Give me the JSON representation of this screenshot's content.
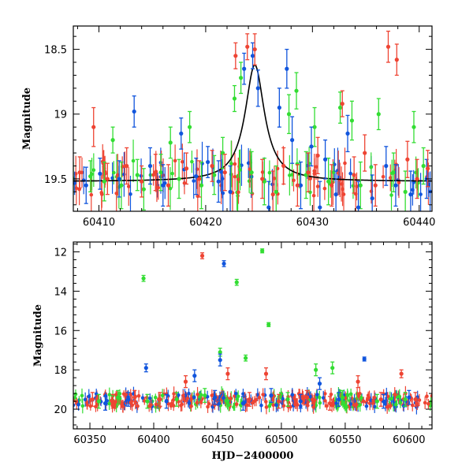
{
  "colors": {
    "green": "#33dd33",
    "blue": "#1155dd",
    "red": "#ee4433",
    "model": "#000000"
  },
  "chart_data": [
    {
      "type": "scatter",
      "panel": "top",
      "xlabel": "",
      "ylabel": "Magnitude",
      "xlim": [
        60407.6,
        60441.2
      ],
      "ylim": [
        19.75,
        18.32
      ],
      "y_inverted": true,
      "xticks": [
        60410,
        60420,
        60430,
        60440
      ],
      "yticks": [
        18.5,
        19,
        19.5
      ],
      "model_curve": {
        "label": "",
        "peak_x": 60424.6,
        "peak_mag": 18.62,
        "baseline_mag": 19.52,
        "width_days": 1.1
      },
      "series": [
        {
          "color": "green",
          "points": [
            {
              "x": 60409.2,
              "y": 19.48,
              "err": 0.12
            },
            {
              "x": 60410.5,
              "y": 19.52,
              "err": 0.15
            },
            {
              "x": 60411.3,
              "y": 19.2,
              "err": 0.1
            },
            {
              "x": 60412.1,
              "y": 19.55,
              "err": 0.18
            },
            {
              "x": 60413.6,
              "y": 19.47,
              "err": 0.12
            },
            {
              "x": 60414.2,
              "y": 19.58,
              "err": 0.16
            },
            {
              "x": 60415.8,
              "y": 19.45,
              "err": 0.14
            },
            {
              "x": 60416.7,
              "y": 19.22,
              "err": 0.12
            },
            {
              "x": 60417.5,
              "y": 19.5,
              "err": 0.15
            },
            {
              "x": 60418.5,
              "y": 19.1,
              "err": 0.12
            },
            {
              "x": 60419.6,
              "y": 19.55,
              "err": 0.18
            },
            {
              "x": 60420.8,
              "y": 19.47,
              "err": 0.15
            },
            {
              "x": 60421.6,
              "y": 19.3,
              "err": 0.12
            },
            {
              "x": 60422.7,
              "y": 18.88,
              "err": 0.1
            },
            {
              "x": 60423.3,
              "y": 18.72,
              "err": 0.12
            },
            {
              "x": 60424.3,
              "y": 19.45,
              "err": 0.16
            },
            {
              "x": 60425.5,
              "y": 19.52,
              "err": 0.18
            },
            {
              "x": 60426.6,
              "y": 19.6,
              "err": 0.2
            },
            {
              "x": 60427.8,
              "y": 19.0,
              "err": 0.15
            },
            {
              "x": 60428.5,
              "y": 18.82,
              "err": 0.14
            },
            {
              "x": 60429.4,
              "y": 19.47,
              "err": 0.18
            },
            {
              "x": 60430.2,
              "y": 19.1,
              "err": 0.15
            },
            {
              "x": 60431.5,
              "y": 19.52,
              "err": 0.18
            },
            {
              "x": 60432.6,
              "y": 18.95,
              "err": 0.12
            },
            {
              "x": 60433.7,
              "y": 19.05,
              "err": 0.15
            },
            {
              "x": 60434.5,
              "y": 19.55,
              "err": 0.18
            },
            {
              "x": 60436.2,
              "y": 19.0,
              "err": 0.12
            },
            {
              "x": 60437.6,
              "y": 19.45,
              "err": 0.15
            },
            {
              "x": 60438.7,
              "y": 19.6,
              "err": 0.16
            },
            {
              "x": 60439.5,
              "y": 19.1,
              "err": 0.12
            },
            {
              "x": 60440.4,
              "y": 19.4,
              "err": 0.14
            }
          ]
        },
        {
          "color": "blue",
          "points": [
            {
              "x": 60408.8,
              "y": 19.55,
              "err": 0.14
            },
            {
              "x": 60410.1,
              "y": 19.46,
              "err": 0.12
            },
            {
              "x": 60411.9,
              "y": 19.5,
              "err": 0.14
            },
            {
              "x": 60413.3,
              "y": 18.98,
              "err": 0.12
            },
            {
              "x": 60414.8,
              "y": 19.4,
              "err": 0.14
            },
            {
              "x": 60416.0,
              "y": 19.55,
              "err": 0.16
            },
            {
              "x": 60417.7,
              "y": 19.15,
              "err": 0.12
            },
            {
              "x": 60419.1,
              "y": 19.48,
              "err": 0.14
            },
            {
              "x": 60420.2,
              "y": 19.37,
              "err": 0.12
            },
            {
              "x": 60421.2,
              "y": 19.52,
              "err": 0.16
            },
            {
              "x": 60422.3,
              "y": 19.6,
              "err": 0.2
            },
            {
              "x": 60423.6,
              "y": 18.65,
              "err": 0.12
            },
            {
              "x": 60424.4,
              "y": 18.55,
              "err": 0.1
            },
            {
              "x": 60424.9,
              "y": 18.8,
              "err": 0.14
            },
            {
              "x": 60425.9,
              "y": 19.72,
              "err": 0.2
            },
            {
              "x": 60426.9,
              "y": 18.95,
              "err": 0.15
            },
            {
              "x": 60427.6,
              "y": 18.65,
              "err": 0.15
            },
            {
              "x": 60428.1,
              "y": 19.2,
              "err": 0.18
            },
            {
              "x": 60428.9,
              "y": 19.55,
              "err": 0.18
            },
            {
              "x": 60429.9,
              "y": 19.25,
              "err": 0.15
            },
            {
              "x": 60430.7,
              "y": 19.72,
              "err": 0.2
            },
            {
              "x": 60431.2,
              "y": 19.35,
              "err": 0.15
            },
            {
              "x": 60432.2,
              "y": 19.62,
              "err": 0.18
            },
            {
              "x": 60433.3,
              "y": 19.15,
              "err": 0.14
            },
            {
              "x": 60434.3,
              "y": 19.72,
              "err": 0.2
            },
            {
              "x": 60435.6,
              "y": 19.65,
              "err": 0.18
            },
            {
              "x": 60436.9,
              "y": 19.4,
              "err": 0.15
            },
            {
              "x": 60437.8,
              "y": 19.55,
              "err": 0.16
            },
            {
              "x": 60439.2,
              "y": 19.62,
              "err": 0.18
            },
            {
              "x": 60440.7,
              "y": 19.5,
              "err": 0.15
            }
          ]
        },
        {
          "color": "red",
          "points": [
            {
              "x": 60408.2,
              "y": 19.45,
              "err": 0.12
            },
            {
              "x": 60409.5,
              "y": 19.1,
              "err": 0.15
            },
            {
              "x": 60410.8,
              "y": 19.5,
              "err": 0.12
            },
            {
              "x": 60412.6,
              "y": 19.4,
              "err": 0.14
            },
            {
              "x": 60414.0,
              "y": 19.52,
              "err": 0.12
            },
            {
              "x": 60415.3,
              "y": 19.45,
              "err": 0.14
            },
            {
              "x": 60416.5,
              "y": 19.55,
              "err": 0.16
            },
            {
              "x": 60418.2,
              "y": 19.42,
              "err": 0.12
            },
            {
              "x": 60419.4,
              "y": 19.5,
              "err": 0.14
            },
            {
              "x": 60420.6,
              "y": 19.4,
              "err": 0.12
            },
            {
              "x": 60421.8,
              "y": 19.45,
              "err": 0.14
            },
            {
              "x": 60422.8,
              "y": 18.55,
              "err": 0.1
            },
            {
              "x": 60423.9,
              "y": 18.48,
              "err": 0.1
            },
            {
              "x": 60424.6,
              "y": 18.5,
              "err": 0.12
            },
            {
              "x": 60425.3,
              "y": 19.5,
              "err": 0.15
            },
            {
              "x": 60426.3,
              "y": 19.62,
              "err": 0.18
            },
            {
              "x": 60427.3,
              "y": 19.4,
              "err": 0.14
            },
            {
              "x": 60428.6,
              "y": 19.55,
              "err": 0.16
            },
            {
              "x": 60429.6,
              "y": 19.45,
              "err": 0.15
            },
            {
              "x": 60430.5,
              "y": 19.32,
              "err": 0.14
            },
            {
              "x": 60431.8,
              "y": 19.55,
              "err": 0.16
            },
            {
              "x": 60432.8,
              "y": 18.92,
              "err": 0.1
            },
            {
              "x": 60433.9,
              "y": 19.47,
              "err": 0.14
            },
            {
              "x": 60434.9,
              "y": 19.3,
              "err": 0.14
            },
            {
              "x": 60435.9,
              "y": 19.55,
              "err": 0.16
            },
            {
              "x": 60437.1,
              "y": 18.48,
              "err": 0.12
            },
            {
              "x": 60437.9,
              "y": 18.58,
              "err": 0.12
            },
            {
              "x": 60438.9,
              "y": 19.35,
              "err": 0.14
            },
            {
              "x": 60439.8,
              "y": 19.5,
              "err": 0.15
            },
            {
              "x": 60440.8,
              "y": 19.42,
              "err": 0.14
            }
          ]
        }
      ]
    },
    {
      "type": "scatter",
      "panel": "bottom",
      "xlabel": "HJD−2400000",
      "ylabel": "Magnitude",
      "xlim": [
        60337,
        60618
      ],
      "ylim": [
        21.0,
        11.5
      ],
      "y_inverted": true,
      "xticks": [
        60350,
        60400,
        60450,
        60500,
        60550,
        60600
      ],
      "yticks": [
        12,
        14,
        16,
        18,
        20
      ],
      "series": [
        {
          "color": "green",
          "points": [
            {
              "x": 60357,
              "y": 19.6,
              "err": 0.35
            },
            {
              "x": 60372,
              "y": 19.4,
              "err": 0.35
            },
            {
              "x": 60392,
              "y": 13.35,
              "err": 0.15
            },
            {
              "x": 60395,
              "y": 19.6,
              "err": 0.35
            },
            {
              "x": 60418,
              "y": 19.5,
              "err": 0.35
            },
            {
              "x": 60440,
              "y": 19.3,
              "err": 0.35
            },
            {
              "x": 60452,
              "y": 17.1,
              "err": 0.2
            },
            {
              "x": 60465,
              "y": 13.55,
              "err": 0.15
            },
            {
              "x": 60472,
              "y": 17.4,
              "err": 0.15
            },
            {
              "x": 60485,
              "y": 11.95,
              "err": 0.1
            },
            {
              "x": 60490,
              "y": 15.7,
              "err": 0.1
            },
            {
              "x": 60505,
              "y": 19.5,
              "err": 0.35
            },
            {
              "x": 60527,
              "y": 18.0,
              "err": 0.3
            },
            {
              "x": 60540,
              "y": 17.9,
              "err": 0.3
            },
            {
              "x": 60548,
              "y": 19.4,
              "err": 0.35
            },
            {
              "x": 60575,
              "y": 19.6,
              "err": 0.35
            },
            {
              "x": 60597,
              "y": 19.5,
              "err": 0.35
            }
          ]
        },
        {
          "color": "blue",
          "points": [
            {
              "x": 60362,
              "y": 19.7,
              "err": 0.35
            },
            {
              "x": 60380,
              "y": 19.5,
              "err": 0.35
            },
            {
              "x": 60394,
              "y": 17.9,
              "err": 0.2
            },
            {
              "x": 60410,
              "y": 19.6,
              "err": 0.35
            },
            {
              "x": 60432,
              "y": 18.3,
              "err": 0.3
            },
            {
              "x": 60448,
              "y": 19.4,
              "err": 0.35
            },
            {
              "x": 60452,
              "y": 17.5,
              "err": 0.3
            },
            {
              "x": 60455,
              "y": 12.6,
              "err": 0.15
            },
            {
              "x": 60470,
              "y": 19.7,
              "err": 0.35
            },
            {
              "x": 60492,
              "y": 19.3,
              "err": 0.35
            },
            {
              "x": 60515,
              "y": 19.6,
              "err": 0.35
            },
            {
              "x": 60530,
              "y": 18.7,
              "err": 0.3
            },
            {
              "x": 60545,
              "y": 19.5,
              "err": 0.35
            },
            {
              "x": 60565,
              "y": 17.45,
              "err": 0.1
            },
            {
              "x": 60580,
              "y": 19.6,
              "err": 0.35
            },
            {
              "x": 60600,
              "y": 19.4,
              "err": 0.35
            }
          ]
        },
        {
          "color": "red",
          "points": [
            {
              "x": 60352,
              "y": 19.5,
              "err": 0.35
            },
            {
              "x": 60368,
              "y": 19.6,
              "err": 0.35
            },
            {
              "x": 60385,
              "y": 19.4,
              "err": 0.35
            },
            {
              "x": 60405,
              "y": 19.5,
              "err": 0.35
            },
            {
              "x": 60425,
              "y": 18.6,
              "err": 0.3
            },
            {
              "x": 60438,
              "y": 12.2,
              "err": 0.15
            },
            {
              "x": 60458,
              "y": 18.2,
              "err": 0.3
            },
            {
              "x": 60475,
              "y": 19.5,
              "err": 0.35
            },
            {
              "x": 60488,
              "y": 18.2,
              "err": 0.3
            },
            {
              "x": 60498,
              "y": 19.6,
              "err": 0.35
            },
            {
              "x": 60520,
              "y": 19.4,
              "err": 0.35
            },
            {
              "x": 60538,
              "y": 19.7,
              "err": 0.35
            },
            {
              "x": 60560,
              "y": 18.6,
              "err": 0.3
            },
            {
              "x": 60578,
              "y": 19.5,
              "err": 0.35
            },
            {
              "x": 60594,
              "y": 18.2,
              "err": 0.2
            },
            {
              "x": 60605,
              "y": 19.5,
              "err": 0.35
            }
          ]
        }
      ]
    }
  ]
}
